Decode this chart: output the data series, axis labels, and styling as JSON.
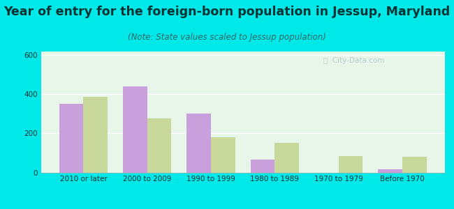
{
  "title": "Year of entry for the foreign-born population in Jessup, Maryland",
  "subtitle": "(Note: State values scaled to Jessup population)",
  "categories": [
    "2010 or later",
    "2000 to 2009",
    "1990 to 1999",
    "1980 to 1989",
    "1970 to 1979",
    "Before 1970"
  ],
  "jessup_values": [
    350,
    440,
    300,
    65,
    0,
    15
  ],
  "maryland_values": [
    385,
    275,
    180,
    150,
    85,
    80
  ],
  "jessup_color": "#c9a0dc",
  "maryland_color": "#c8d89a",
  "background_outer": "#00e8e8",
  "background_plot": "#e8f5e9",
  "ylim": [
    0,
    620
  ],
  "yticks": [
    0,
    200,
    400,
    600
  ],
  "bar_width": 0.38,
  "title_fontsize": 12.5,
  "subtitle_fontsize": 8.5,
  "tick_fontsize": 7.5,
  "legend_fontsize": 9,
  "title_color": "#003333",
  "subtitle_color": "#336666",
  "tick_color": "#003333"
}
